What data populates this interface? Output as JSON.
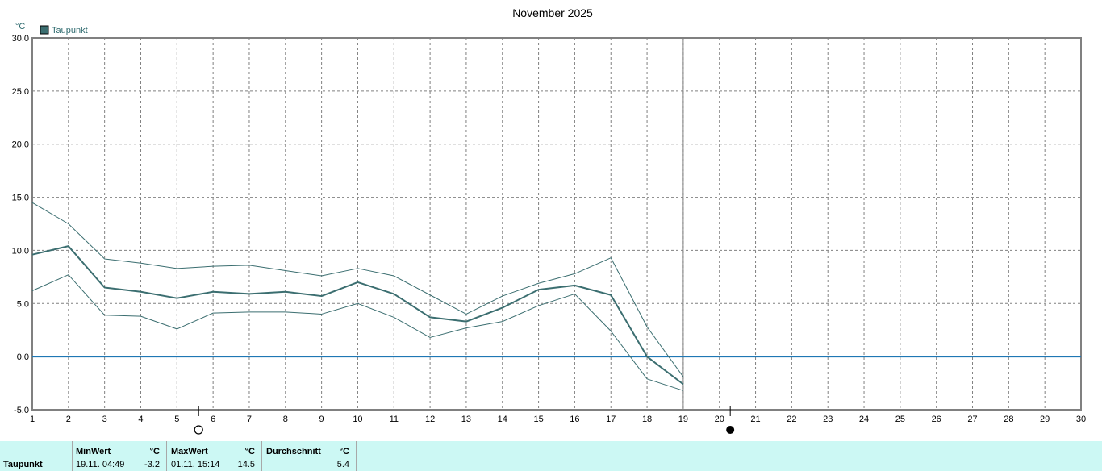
{
  "chart_data": {
    "type": "line",
    "title": "November 2025",
    "ylabel": "°C",
    "legend": [
      {
        "name": "Taupunkt",
        "color": "#3b6e70"
      }
    ],
    "legend_position": "top-left",
    "x": [
      1,
      2,
      3,
      4,
      5,
      6,
      7,
      8,
      9,
      10,
      11,
      12,
      13,
      14,
      15,
      16,
      17,
      18,
      19
    ],
    "xlim": [
      1,
      30
    ],
    "ylim": [
      -5,
      30
    ],
    "xticks": [
      "1",
      "2",
      "3",
      "4",
      "5",
      "6",
      "7",
      "8",
      "9",
      "10",
      "11",
      "12",
      "13",
      "14",
      "15",
      "16",
      "17",
      "18",
      "19",
      "20",
      "21",
      "22",
      "23",
      "24",
      "25",
      "26",
      "27",
      "28",
      "29",
      "30"
    ],
    "yticks": [
      "-5.0",
      "0.0",
      "5.0",
      "10.0",
      "15.0",
      "20.0",
      "25.0",
      "30.0"
    ],
    "grid": true,
    "current_day_marker": 19,
    "series": [
      {
        "name": "Taupunkt",
        "role": "mean",
        "values": [
          9.6,
          10.4,
          6.5,
          6.1,
          5.5,
          6.1,
          5.9,
          6.1,
          5.7,
          7.0,
          5.9,
          3.7,
          3.3,
          4.6,
          6.3,
          6.7,
          5.8,
          0.0,
          -2.6
        ]
      },
      {
        "name": "Taupunkt",
        "role": "max",
        "values": [
          14.5,
          12.5,
          9.2,
          8.8,
          8.3,
          8.5,
          8.6,
          8.1,
          7.6,
          8.3,
          7.6,
          5.8,
          4.0,
          5.7,
          6.9,
          7.8,
          9.3,
          2.8,
          -1.9
        ]
      },
      {
        "name": "Taupunkt",
        "role": "min",
        "values": [
          6.2,
          7.7,
          3.9,
          3.8,
          2.6,
          4.1,
          4.2,
          4.2,
          4.0,
          5.0,
          3.7,
          1.8,
          2.7,
          3.3,
          4.8,
          5.9,
          2.4,
          -2.1,
          -3.2
        ]
      }
    ],
    "reference_line": {
      "y": 0,
      "color": "#1f77b4"
    },
    "moon_phases": [
      {
        "x": 5.6,
        "phase": "full-moon"
      },
      {
        "x": 20.3,
        "phase": "new-moon"
      }
    ],
    "colors": {
      "series": "#3b6e70",
      "zero_line": "#1f77b4",
      "grid": "#808080",
      "stats_bg": "#ccf8f4"
    }
  },
  "stats": {
    "row_label": "Taupunkt",
    "min": {
      "header": "MinWert",
      "unit": "°C",
      "datetime": "19.11.  04:49",
      "value": "-3.2"
    },
    "max": {
      "header": "MaxWert",
      "unit": "°C",
      "datetime": "01.11.  15:14",
      "value": "14.5"
    },
    "avg": {
      "header": "Durchschnitt",
      "unit": "°C",
      "value": "5.4"
    }
  }
}
